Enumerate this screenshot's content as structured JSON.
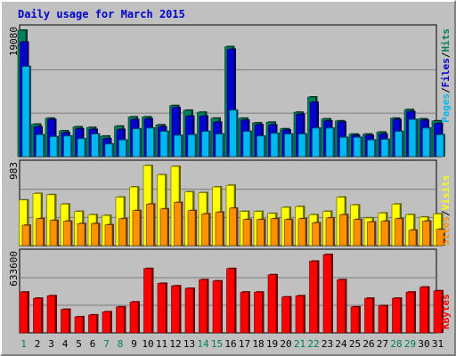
{
  "title": "Daily usage for March 2015",
  "colors": {
    "background": "#c0c0c0",
    "grid": "#7a7a7a",
    "weekend_day": "#00805a",
    "weekday_day": "#000000",
    "hits": "#00805a",
    "files": "#0000d0",
    "pages": "#00b8f0",
    "visits": "#ffff00",
    "sites": "#ff9000",
    "kbytes": "#ff0000"
  },
  "chart_data": [
    {
      "type": "bar",
      "panel": "hits-files-pages",
      "categories": [
        "1",
        "2",
        "3",
        "4",
        "5",
        "6",
        "7",
        "8",
        "9",
        "10",
        "11",
        "12",
        "13",
        "14",
        "15",
        "16",
        "17",
        "18",
        "19",
        "20",
        "21",
        "22",
        "23",
        "24",
        "25",
        "26",
        "27",
        "28",
        "29",
        "30",
        "31"
      ],
      "ylim": [
        0,
        19080
      ],
      "max_label": "19080",
      "legend": [
        "Pages",
        "/",
        "Files",
        "/",
        "Hits"
      ],
      "series": [
        {
          "name": "Hits",
          "values": [
            19080,
            4900,
            5800,
            3900,
            4500,
            4400,
            3100,
            4600,
            6000,
            6000,
            4800,
            7700,
            7000,
            6700,
            5800,
            16600,
            5800,
            5100,
            5200,
            4200,
            6700,
            9000,
            5700,
            5400,
            3400,
            3400,
            3700,
            5800,
            7100,
            5700,
            5400
          ]
        },
        {
          "name": "Files",
          "values": [
            17300,
            4500,
            5600,
            3600,
            4200,
            4100,
            2700,
            4100,
            5600,
            5700,
            4500,
            7400,
            6100,
            6100,
            5200,
            16200,
            5500,
            4800,
            4800,
            4000,
            6400,
            8200,
            5400,
            5200,
            3200,
            3200,
            3400,
            5600,
            6800,
            5500,
            5000
          ]
        },
        {
          "name": "Pages",
          "values": [
            13600,
            3300,
            3000,
            3100,
            2700,
            3400,
            1900,
            2500,
            4200,
            4300,
            3800,
            3200,
            3300,
            3800,
            3400,
            7000,
            3800,
            3100,
            3500,
            3400,
            3400,
            4300,
            4300,
            2900,
            2900,
            2500,
            2600,
            3800,
            5600,
            4300,
            3300
          ]
        }
      ]
    },
    {
      "type": "bar",
      "panel": "visits-sites",
      "categories": [
        "1",
        "2",
        "3",
        "4",
        "5",
        "6",
        "7",
        "8",
        "9",
        "10",
        "11",
        "12",
        "13",
        "14",
        "15",
        "16",
        "17",
        "18",
        "19",
        "20",
        "21",
        "22",
        "23",
        "24",
        "25",
        "26",
        "27",
        "28",
        "29",
        "30",
        "31"
      ],
      "ylim": [
        0,
        983
      ],
      "max_label": "983",
      "legend": [
        "Sites",
        "/",
        "Visits"
      ],
      "series": [
        {
          "name": "Visits",
          "values": [
            560,
            640,
            625,
            510,
            420,
            380,
            370,
            595,
            720,
            983,
            870,
            972,
            660,
            650,
            720,
            740,
            420,
            420,
            395,
            470,
            480,
            380,
            420,
            595,
            500,
            340,
            400,
            510,
            380,
            350,
            390
          ]
        },
        {
          "name": "Sites",
          "values": [
            250,
            330,
            310,
            300,
            270,
            270,
            255,
            330,
            430,
            510,
            450,
            530,
            430,
            390,
            410,
            460,
            320,
            320,
            330,
            320,
            330,
            280,
            340,
            380,
            320,
            290,
            300,
            330,
            190,
            300,
            200
          ]
        }
      ]
    },
    {
      "type": "bar",
      "panel": "kbytes",
      "categories": [
        "1",
        "2",
        "3",
        "4",
        "5",
        "6",
        "7",
        "8",
        "9",
        "10",
        "11",
        "12",
        "13",
        "14",
        "15",
        "16",
        "17",
        "18",
        "19",
        "20",
        "21",
        "22",
        "23",
        "24",
        "25",
        "26",
        "27",
        "28",
        "29",
        "30",
        "31"
      ],
      "ylim": [
        0,
        633600
      ],
      "max_label": "633600",
      "legend": [
        "KBytes"
      ],
      "series": [
        {
          "name": "KBytes",
          "values": [
            330000,
            280000,
            300000,
            190000,
            130000,
            145000,
            170000,
            210000,
            250000,
            520000,
            400000,
            380000,
            360000,
            430000,
            420000,
            520000,
            330000,
            330000,
            470000,
            290000,
            300000,
            580000,
            633600,
            430000,
            210000,
            280000,
            220000,
            280000,
            330000,
            370000,
            340000
          ]
        }
      ]
    }
  ]
}
